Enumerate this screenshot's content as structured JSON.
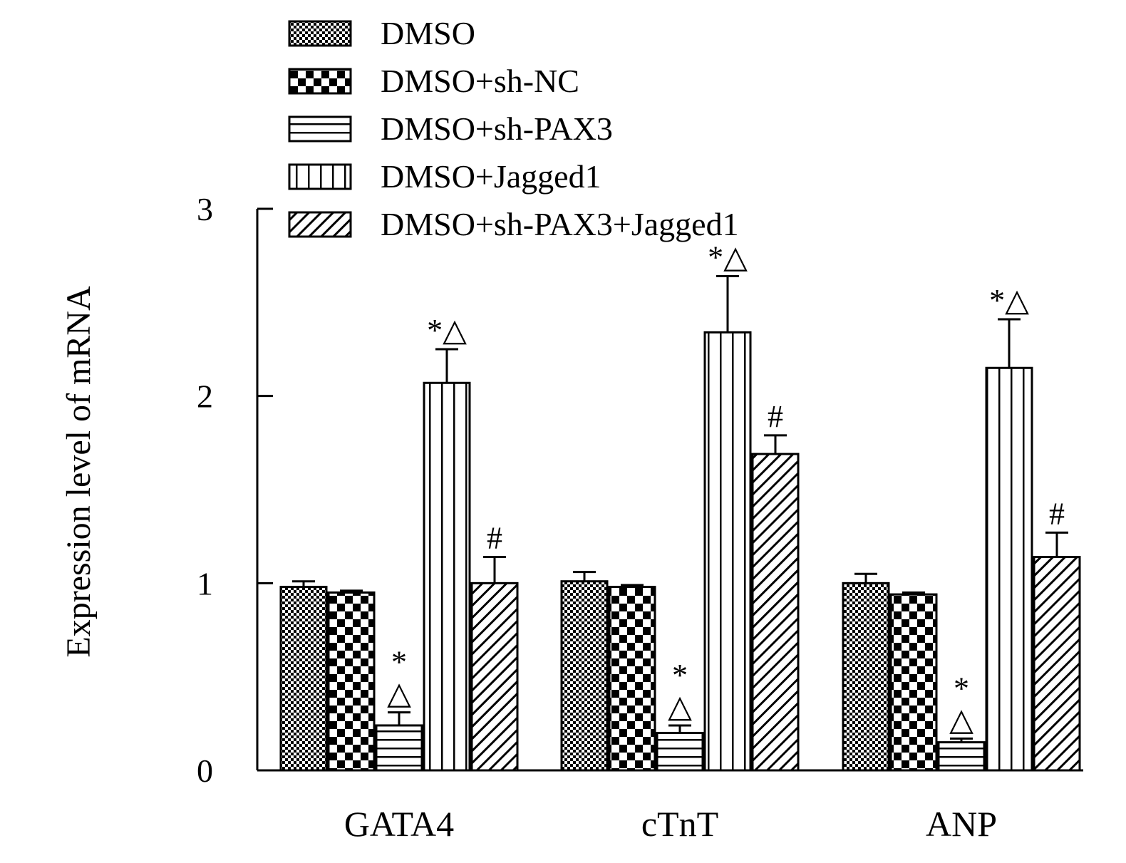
{
  "chart_data": {
    "type": "bar",
    "title": "",
    "xlabel": "",
    "ylabel": "Expression level of mRNA",
    "ylim": [
      0,
      3
    ],
    "yticks": [
      "0",
      "1",
      "2",
      "3"
    ],
    "grid": false,
    "legend_position": "top",
    "categories": [
      "GATA4",
      "cTnT",
      "ANP"
    ],
    "series": [
      {
        "name": "DMSO",
        "pattern": "dots",
        "values": [
          0.98,
          1.01,
          1.0
        ],
        "errors": [
          0.03,
          0.05,
          0.05
        ],
        "annotations": [
          "",
          "",
          ""
        ]
      },
      {
        "name": "DMSO+sh-NC",
        "pattern": "checker",
        "values": [
          0.95,
          0.98,
          0.94
        ],
        "errors": [
          0.01,
          0.01,
          0.01
        ],
        "annotations": [
          "",
          "",
          ""
        ]
      },
      {
        "name": "DMSO+sh-PAX3",
        "pattern": "hlines",
        "values": [
          0.24,
          0.2,
          0.15
        ],
        "errors": [
          0.07,
          0.04,
          0.02
        ],
        "annotations": [
          "*\n△",
          "*\n△",
          "*\n△"
        ]
      },
      {
        "name": "DMSO+Jagged1",
        "pattern": "vlines",
        "values": [
          2.07,
          2.34,
          2.15
        ],
        "errors": [
          0.18,
          0.3,
          0.26
        ],
        "annotations": [
          "*△",
          "*△",
          "*△"
        ]
      },
      {
        "name": "DMSO+sh-PAX3+Jagged1",
        "pattern": "diag",
        "values": [
          1.0,
          1.69,
          1.14
        ],
        "errors": [
          0.14,
          0.1,
          0.13
        ],
        "annotations": [
          "#",
          "#",
          "#"
        ]
      }
    ]
  }
}
